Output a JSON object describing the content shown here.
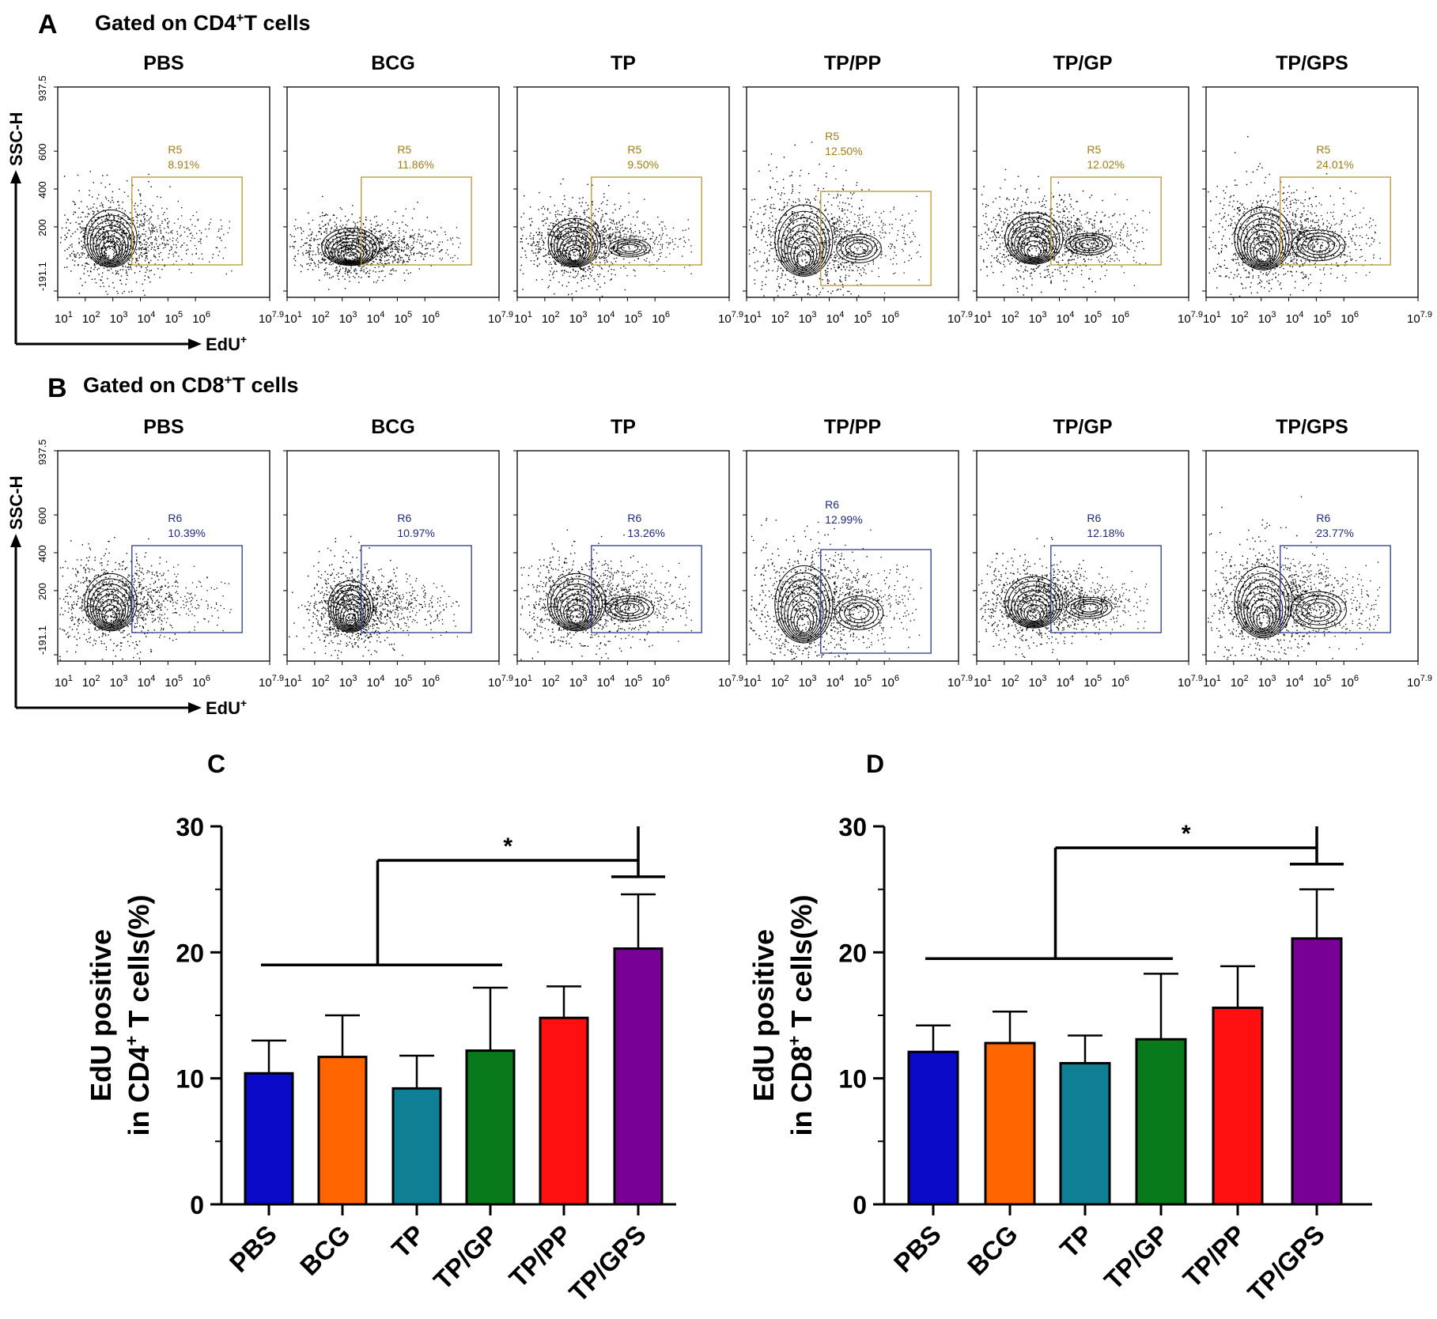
{
  "flow_panels": [
    {
      "letter": "A",
      "title_prefix": "Gated on CD4",
      "title_sup": "+",
      "title_suffix": "T cells",
      "y_axis_label": "SSC-H",
      "x_axis_label": "EdU",
      "x_axis_sup": "+",
      "y_ticks": [
        "937.5",
        "600",
        "400",
        "200",
        "-191.1"
      ],
      "x_ticks": [
        {
          "base": "10",
          "exp": "1"
        },
        {
          "base": "10",
          "exp": "2"
        },
        {
          "base": "10",
          "exp": "3"
        },
        {
          "base": "10",
          "exp": "4"
        },
        {
          "base": "10",
          "exp": "5"
        },
        {
          "base": "10",
          "exp": "6"
        },
        {
          "base": "10",
          "exp": "7.9"
        }
      ],
      "gate_color": "#b8962e",
      "plots": [
        {
          "group": "PBS",
          "gate": "R5",
          "percent": "8.91%"
        },
        {
          "group": "BCG",
          "gate": "R5",
          "percent": "11.86%"
        },
        {
          "group": "TP",
          "gate": "R5",
          "percent": "9.50%"
        },
        {
          "group": "TP/PP",
          "gate": "R5",
          "percent": "12.50%"
        },
        {
          "group": "TP/GP",
          "gate": "R5",
          "percent": "12.02%"
        },
        {
          "group": "TP/GPS",
          "gate": "R5",
          "percent": "24.01%"
        }
      ]
    },
    {
      "letter": "B",
      "title_prefix": "Gated on CD8",
      "title_sup": "+",
      "title_suffix": "T cells",
      "y_axis_label": "SSC-H",
      "x_axis_label": "EdU",
      "x_axis_sup": "+",
      "y_ticks": [
        "937.5",
        "600",
        "400",
        "200",
        "-191.1"
      ],
      "x_ticks": [
        {
          "base": "10",
          "exp": "1"
        },
        {
          "base": "10",
          "exp": "2"
        },
        {
          "base": "10",
          "exp": "3"
        },
        {
          "base": "10",
          "exp": "4"
        },
        {
          "base": "10",
          "exp": "5"
        },
        {
          "base": "10",
          "exp": "6"
        },
        {
          "base": "10",
          "exp": "7.9"
        }
      ],
      "gate_color": "#2a3a8c",
      "plots": [
        {
          "group": "PBS",
          "gate": "R6",
          "percent": "10.39%"
        },
        {
          "group": "BCG",
          "gate": "R6",
          "percent": "10.97%"
        },
        {
          "group": "TP",
          "gate": "R6",
          "percent": "13.26%"
        },
        {
          "group": "TP/PP",
          "gate": "R6",
          "percent": "12.99%"
        },
        {
          "group": "TP/GP",
          "gate": "R6",
          "percent": "12.18%"
        },
        {
          "group": "TP/GPS",
          "gate": "R6",
          "percent": "23.77%"
        }
      ]
    }
  ],
  "chart_data": [
    {
      "panel": "C",
      "type": "bar",
      "categories": [
        "PBS",
        "BCG",
        "TP",
        "TP/GP",
        "TP/PP",
        "TP/GPS"
      ],
      "values": [
        10.4,
        11.7,
        9.2,
        12.2,
        14.8,
        20.3
      ],
      "errors": [
        2.6,
        3.3,
        2.6,
        5.0,
        2.5,
        4.3
      ],
      "colors": [
        "#0a0ac8",
        "#ff6600",
        "#0f7f95",
        "#087a1c",
        "#ff1010",
        "#780096"
      ],
      "ylabel_line1": "EdU positive",
      "ylabel_line2_prefix": "in CD4",
      "ylabel_line2_sup": "+",
      "ylabel_line2_suffix": " T cells(%)",
      "ylim": [
        0,
        30
      ],
      "yticks": [
        "0",
        "10",
        "20",
        "30"
      ],
      "significance": {
        "label": "*",
        "group_from": "PBS",
        "group_to": "TP/GP",
        "target": "TP/GPS",
        "group_line_y": 19.0,
        "bracket_y": 27.3,
        "target_cap_y": 26.0
      }
    },
    {
      "panel": "D",
      "type": "bar",
      "categories": [
        "PBS",
        "BCG",
        "TP",
        "TP/GP",
        "TP/PP",
        "TP/GPS"
      ],
      "values": [
        12.1,
        12.8,
        11.2,
        13.1,
        15.6,
        21.1
      ],
      "errors": [
        2.1,
        2.5,
        2.2,
        5.2,
        3.3,
        3.9
      ],
      "colors": [
        "#0a0ac8",
        "#ff6600",
        "#0f7f95",
        "#087a1c",
        "#ff1010",
        "#780096"
      ],
      "ylabel_line1": "EdU positive",
      "ylabel_line2_prefix": "in CD8",
      "ylabel_line2_sup": "+",
      "ylabel_line2_suffix": " T cells(%)",
      "ylim": [
        0,
        30
      ],
      "yticks": [
        "0",
        "10",
        "20",
        "30"
      ],
      "significance": {
        "label": "*",
        "group_from": "PBS",
        "group_to": "TP/GP",
        "target": "TP/GPS",
        "group_line_y": 19.5,
        "bracket_y": 28.3,
        "target_cap_y": 27.0
      }
    }
  ]
}
